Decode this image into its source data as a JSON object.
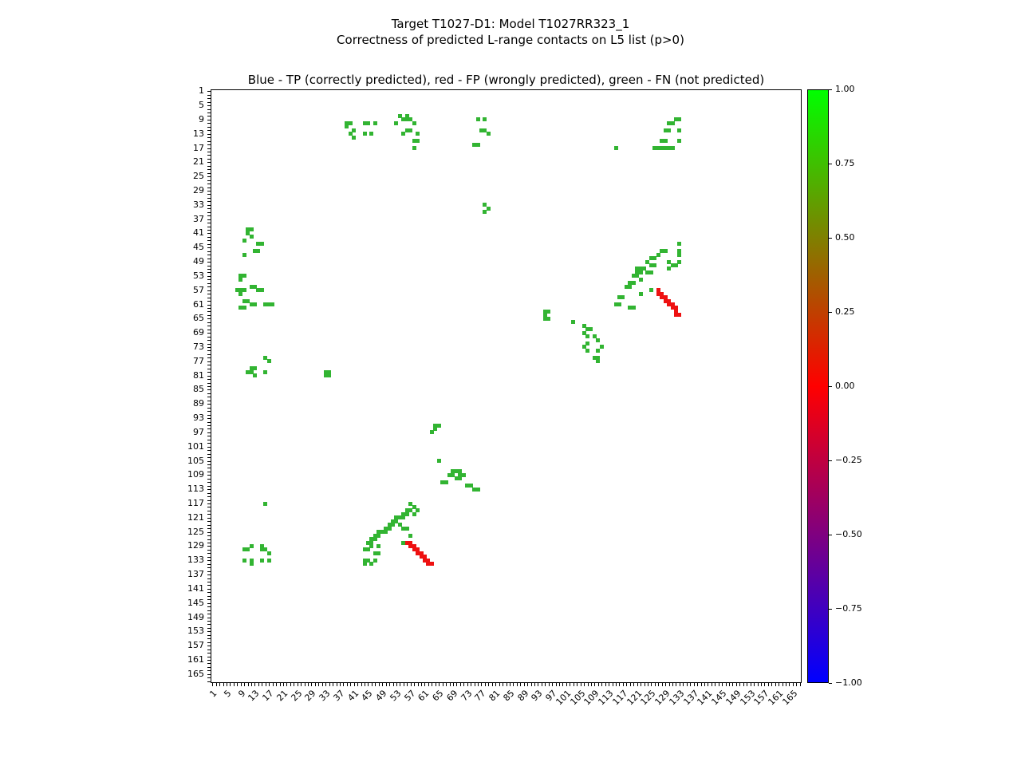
{
  "figure": {
    "title_line1": "Target T1027-D1: Model T1027RR323_1",
    "title_line2": "Correctness of predicted L-range contacts on L5 list (p>0)"
  },
  "chart_data": {
    "type": "scatter",
    "title": "Blue - TP (correctly predicted), red - FP (wrongly predicted), green - FN (not predicted)",
    "xlabel": "",
    "ylabel": "",
    "axis_range": [
      1,
      167
    ],
    "y_inverted": true,
    "grid": false,
    "marker": "square",
    "axis_ticks": [
      1,
      5,
      9,
      13,
      17,
      21,
      25,
      29,
      33,
      37,
      41,
      45,
      49,
      53,
      57,
      61,
      65,
      69,
      73,
      77,
      81,
      85,
      89,
      93,
      97,
      101,
      105,
      109,
      113,
      117,
      121,
      125,
      129,
      133,
      137,
      141,
      145,
      149,
      153,
      157,
      161,
      165
    ],
    "colorbar": {
      "range": [
        -1,
        1
      ],
      "ticks": [
        "1.00",
        "0.75",
        "0.50",
        "0.25",
        "0.00",
        "−0.25",
        "−0.50",
        "−0.75",
        "−1.00"
      ],
      "gradient_top_to_bottom": [
        "#00ff00",
        "#ff0000",
        "#0000ff"
      ]
    },
    "series": [
      {
        "name": "TP (correctly predicted)",
        "color": "#0000ff",
        "points": []
      },
      {
        "name": "FP (wrongly predicted)",
        "color": "#ee1111",
        "points": [
          [
            127,
            57
          ],
          [
            127,
            58
          ],
          [
            128,
            58
          ],
          [
            128,
            59
          ],
          [
            129,
            59
          ],
          [
            129,
            60
          ],
          [
            130,
            60
          ],
          [
            130,
            61
          ],
          [
            131,
            61
          ],
          [
            131,
            62
          ],
          [
            132,
            62
          ],
          [
            132,
            63
          ],
          [
            132,
            64
          ],
          [
            133,
            64
          ],
          [
            56,
            128
          ],
          [
            57,
            128
          ],
          [
            57,
            129
          ],
          [
            58,
            129
          ],
          [
            58,
            130
          ],
          [
            59,
            130
          ],
          [
            59,
            131
          ],
          [
            60,
            131
          ],
          [
            60,
            132
          ],
          [
            61,
            132
          ],
          [
            61,
            133
          ],
          [
            62,
            133
          ],
          [
            62,
            134
          ],
          [
            63,
            134
          ]
        ]
      },
      {
        "name": "FN (not predicted)",
        "color": "#32b432",
        "points": [
          [
            39,
            10
          ],
          [
            40,
            10
          ],
          [
            39,
            11
          ],
          [
            41,
            12
          ],
          [
            40,
            13
          ],
          [
            41,
            14
          ],
          [
            44,
            10
          ],
          [
            45,
            10
          ],
          [
            47,
            10
          ],
          [
            44,
            13
          ],
          [
            46,
            13
          ],
          [
            54,
            8
          ],
          [
            56,
            8
          ],
          [
            55,
            9
          ],
          [
            56,
            9
          ],
          [
            57,
            9
          ],
          [
            53,
            10
          ],
          [
            58,
            10
          ],
          [
            56,
            12
          ],
          [
            57,
            12
          ],
          [
            55,
            13
          ],
          [
            59,
            13
          ],
          [
            58,
            15
          ],
          [
            59,
            15
          ],
          [
            58,
            17
          ],
          [
            76,
            9
          ],
          [
            78,
            9
          ],
          [
            77,
            12
          ],
          [
            78,
            12
          ],
          [
            79,
            13
          ],
          [
            75,
            16
          ],
          [
            76,
            16
          ],
          [
            115,
            17
          ],
          [
            132,
            9
          ],
          [
            133,
            9
          ],
          [
            130,
            10
          ],
          [
            131,
            10
          ],
          [
            129,
            12
          ],
          [
            130,
            12
          ],
          [
            133,
            12
          ],
          [
            128,
            15
          ],
          [
            129,
            15
          ],
          [
            133,
            15
          ],
          [
            126,
            17
          ],
          [
            127,
            17
          ],
          [
            128,
            17
          ],
          [
            129,
            17
          ],
          [
            130,
            17
          ],
          [
            131,
            17
          ],
          [
            78,
            33
          ],
          [
            79,
            34
          ],
          [
            78,
            35
          ],
          [
            11,
            40
          ],
          [
            12,
            40
          ],
          [
            11,
            41
          ],
          [
            12,
            42
          ],
          [
            10,
            43
          ],
          [
            14,
            44
          ],
          [
            15,
            44
          ],
          [
            13,
            46
          ],
          [
            14,
            46
          ],
          [
            10,
            47
          ],
          [
            9,
            53
          ],
          [
            10,
            53
          ],
          [
            9,
            54
          ],
          [
            12,
            56
          ],
          [
            13,
            56
          ],
          [
            8,
            57
          ],
          [
            9,
            57
          ],
          [
            10,
            57
          ],
          [
            14,
            57
          ],
          [
            15,
            57
          ],
          [
            9,
            58
          ],
          [
            10,
            60
          ],
          [
            11,
            60
          ],
          [
            12,
            61
          ],
          [
            13,
            61
          ],
          [
            16,
            61
          ],
          [
            17,
            61
          ],
          [
            18,
            61
          ],
          [
            9,
            62
          ],
          [
            10,
            62
          ],
          [
            16,
            76
          ],
          [
            17,
            77
          ],
          [
            12,
            79
          ],
          [
            13,
            79
          ],
          [
            11,
            80
          ],
          [
            12,
            80
          ],
          [
            16,
            80
          ],
          [
            13,
            81
          ],
          [
            33,
            80
          ],
          [
            34,
            80
          ],
          [
            33,
            81
          ],
          [
            34,
            81
          ],
          [
            95,
            63
          ],
          [
            96,
            63
          ],
          [
            95,
            64
          ],
          [
            95,
            65
          ],
          [
            96,
            65
          ],
          [
            103,
            66
          ],
          [
            106,
            67
          ],
          [
            107,
            68
          ],
          [
            108,
            68
          ],
          [
            106,
            69
          ],
          [
            107,
            70
          ],
          [
            109,
            70
          ],
          [
            110,
            71
          ],
          [
            107,
            72
          ],
          [
            106,
            73
          ],
          [
            111,
            73
          ],
          [
            107,
            74
          ],
          [
            110,
            74
          ],
          [
            109,
            76
          ],
          [
            110,
            76
          ],
          [
            110,
            77
          ],
          [
            133,
            44
          ],
          [
            128,
            46
          ],
          [
            129,
            46
          ],
          [
            133,
            46
          ],
          [
            127,
            47
          ],
          [
            133,
            47
          ],
          [
            125,
            48
          ],
          [
            126,
            48
          ],
          [
            124,
            49
          ],
          [
            130,
            49
          ],
          [
            133,
            49
          ],
          [
            125,
            50
          ],
          [
            126,
            50
          ],
          [
            131,
            50
          ],
          [
            132,
            50
          ],
          [
            121,
            51
          ],
          [
            122,
            51
          ],
          [
            123,
            51
          ],
          [
            130,
            51
          ],
          [
            121,
            52
          ],
          [
            122,
            52
          ],
          [
            124,
            52
          ],
          [
            125,
            52
          ],
          [
            120,
            53
          ],
          [
            121,
            53
          ],
          [
            122,
            54
          ],
          [
            119,
            55
          ],
          [
            120,
            55
          ],
          [
            118,
            56
          ],
          [
            119,
            56
          ],
          [
            125,
            57
          ],
          [
            122,
            58
          ],
          [
            116,
            59
          ],
          [
            117,
            59
          ],
          [
            115,
            61
          ],
          [
            116,
            61
          ],
          [
            119,
            62
          ],
          [
            120,
            62
          ],
          [
            64,
            95
          ],
          [
            65,
            95
          ],
          [
            64,
            96
          ],
          [
            63,
            97
          ],
          [
            65,
            105
          ],
          [
            69,
            108
          ],
          [
            70,
            108
          ],
          [
            71,
            108
          ],
          [
            68,
            109
          ],
          [
            69,
            109
          ],
          [
            71,
            109
          ],
          [
            72,
            109
          ],
          [
            70,
            110
          ],
          [
            71,
            110
          ],
          [
            66,
            111
          ],
          [
            67,
            111
          ],
          [
            73,
            112
          ],
          [
            74,
            112
          ],
          [
            75,
            113
          ],
          [
            76,
            113
          ],
          [
            16,
            117
          ],
          [
            57,
            117
          ],
          [
            58,
            118
          ],
          [
            56,
            119
          ],
          [
            57,
            119
          ],
          [
            59,
            119
          ],
          [
            55,
            120
          ],
          [
            56,
            120
          ],
          [
            58,
            120
          ],
          [
            53,
            121
          ],
          [
            54,
            121
          ],
          [
            55,
            121
          ],
          [
            52,
            122
          ],
          [
            53,
            122
          ],
          [
            51,
            123
          ],
          [
            52,
            123
          ],
          [
            54,
            123
          ],
          [
            50,
            124
          ],
          [
            51,
            124
          ],
          [
            55,
            124
          ],
          [
            56,
            124
          ],
          [
            48,
            125
          ],
          [
            49,
            125
          ],
          [
            50,
            125
          ],
          [
            47,
            126
          ],
          [
            48,
            126
          ],
          [
            57,
            126
          ],
          [
            46,
            127
          ],
          [
            47,
            127
          ],
          [
            45,
            128
          ],
          [
            46,
            128
          ],
          [
            55,
            128
          ],
          [
            46,
            129
          ],
          [
            48,
            129
          ],
          [
            44,
            130
          ],
          [
            45,
            130
          ],
          [
            47,
            131
          ],
          [
            48,
            131
          ],
          [
            44,
            133
          ],
          [
            45,
            133
          ],
          [
            47,
            133
          ],
          [
            44,
            134
          ],
          [
            46,
            134
          ],
          [
            12,
            129
          ],
          [
            15,
            129
          ],
          [
            10,
            130
          ],
          [
            11,
            130
          ],
          [
            15,
            130
          ],
          [
            16,
            130
          ],
          [
            17,
            131
          ],
          [
            10,
            133
          ],
          [
            12,
            133
          ],
          [
            15,
            133
          ],
          [
            17,
            133
          ],
          [
            12,
            134
          ]
        ]
      }
    ]
  }
}
